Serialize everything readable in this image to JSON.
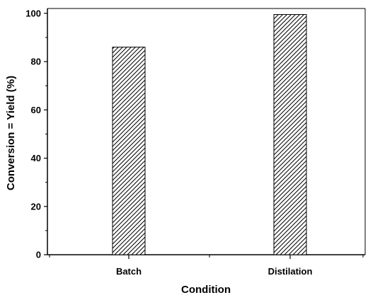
{
  "chart_data": {
    "type": "bar",
    "categories": [
      "Batch",
      "Distilation"
    ],
    "values": [
      86,
      99.5
    ],
    "title": "",
    "xlabel": "Condition",
    "ylabel": "Conversion = Yield (%)",
    "ylim": [
      0,
      102
    ],
    "yticks": [
      0,
      20,
      40,
      60,
      80,
      100
    ],
    "grid": false,
    "bar_fill": "hatched",
    "colors": {
      "bar_stroke": "#000000",
      "hatch": "#000000",
      "axis": "#000000",
      "background": "#ffffff"
    }
  }
}
